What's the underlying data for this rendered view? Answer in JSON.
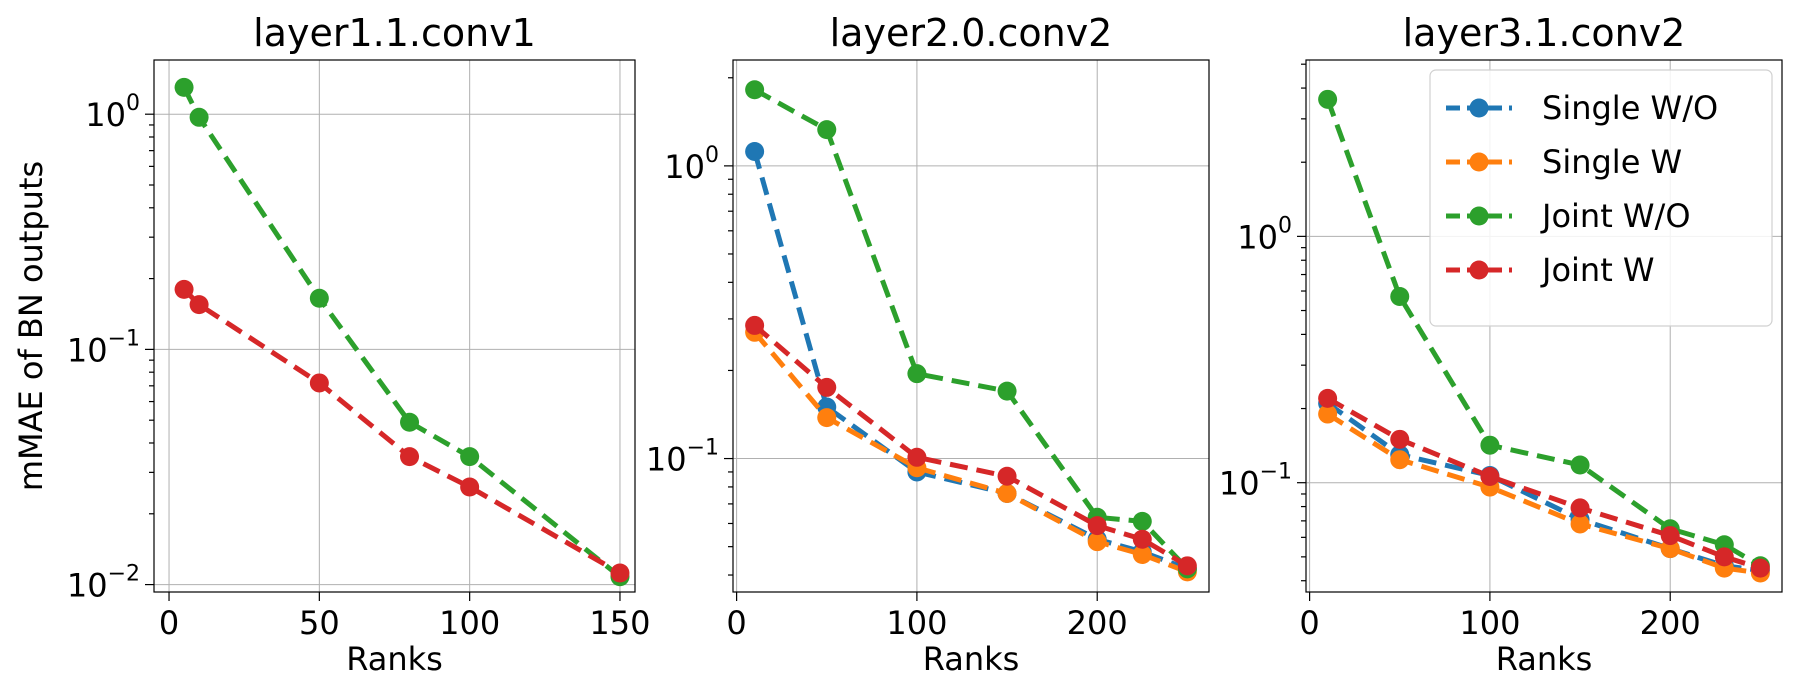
{
  "chart_data": [
    {
      "type": "line",
      "title": "layer1.1.conv1",
      "xlabel": "Ranks",
      "ylabel": "mMAE of BN outputs",
      "yscale": "log",
      "xlim": [
        -5,
        155
      ],
      "ylim": [
        0.0093,
        1.7
      ],
      "xticks": [
        0,
        50,
        100,
        150
      ],
      "yticks": [
        {
          "v": 1,
          "exp": "0"
        },
        {
          "v": 0.1,
          "exp": "−1"
        },
        {
          "v": 0.01,
          "exp": "−2"
        }
      ],
      "grid": true,
      "series": [
        {
          "name": "Single W/O",
          "color": "#1f77b4",
          "x": [],
          "y": []
        },
        {
          "name": "Single W",
          "color": "#ff7f0e",
          "x": [],
          "y": []
        },
        {
          "name": "Joint W/O",
          "color": "#2ca02c",
          "x": [
            5,
            10,
            50,
            80,
            100,
            150
          ],
          "y": [
            1.3,
            0.97,
            0.165,
            0.049,
            0.035,
            0.0108
          ]
        },
        {
          "name": "Joint W",
          "color": "#d62728",
          "x": [
            5,
            10,
            50,
            80,
            100,
            150
          ],
          "y": [
            0.18,
            0.155,
            0.072,
            0.035,
            0.026,
            0.0112
          ]
        }
      ]
    },
    {
      "type": "line",
      "title": "layer2.0.conv2",
      "xlabel": "Ranks",
      "ylabel": "",
      "yscale": "log",
      "xlim": [
        -2,
        262
      ],
      "ylim": [
        0.035,
        2.3
      ],
      "xticks": [
        0,
        100,
        200
      ],
      "yticks": [
        {
          "v": 1,
          "exp": "0"
        },
        {
          "v": 0.1,
          "exp": "−1"
        }
      ],
      "grid": true,
      "series": [
        {
          "name": "Single W/O",
          "color": "#1f77b4",
          "x": [
            10,
            50,
            100,
            150,
            200,
            225,
            250
          ],
          "y": [
            1.12,
            0.15,
            0.09,
            0.076,
            0.053,
            0.048,
            0.042
          ]
        },
        {
          "name": "Single W",
          "color": "#ff7f0e",
          "x": [
            10,
            50,
            100,
            150,
            200,
            225,
            250
          ],
          "y": [
            0.27,
            0.138,
            0.093,
            0.076,
            0.052,
            0.047,
            0.041
          ]
        },
        {
          "name": "Joint W/O",
          "color": "#2ca02c",
          "x": [
            10,
            50,
            100,
            150,
            200,
            225,
            250
          ],
          "y": [
            1.82,
            1.33,
            0.195,
            0.17,
            0.063,
            0.061,
            0.042
          ]
        },
        {
          "name": "Joint W",
          "color": "#d62728",
          "x": [
            10,
            50,
            100,
            150,
            200,
            225,
            250
          ],
          "y": [
            0.285,
            0.175,
            0.101,
            0.087,
            0.059,
            0.053,
            0.043
          ]
        }
      ]
    },
    {
      "type": "line",
      "title": "layer3.1.conv2",
      "xlabel": "Ranks",
      "ylabel": "",
      "yscale": "log",
      "xlim": [
        -2,
        262
      ],
      "ylim": [
        0.036,
        5.2
      ],
      "xticks": [
        0,
        100,
        200
      ],
      "yticks": [
        {
          "v": 1,
          "exp": "0"
        },
        {
          "v": 0.1,
          "exp": "−1"
        }
      ],
      "grid": true,
      "legend": "top-right",
      "series": [
        {
          "name": "Single W/O",
          "color": "#1f77b4",
          "x": [
            10,
            50,
            100,
            150,
            200,
            230,
            250
          ],
          "y": [
            0.21,
            0.13,
            0.107,
            0.071,
            0.054,
            0.046,
            0.044
          ]
        },
        {
          "name": "Single W",
          "color": "#ff7f0e",
          "x": [
            10,
            50,
            100,
            150,
            200,
            230,
            250
          ],
          "y": [
            0.19,
            0.124,
            0.096,
            0.068,
            0.054,
            0.045,
            0.043
          ]
        },
        {
          "name": "Joint W/O",
          "color": "#2ca02c",
          "x": [
            10,
            50,
            100,
            150,
            200,
            230,
            250
          ],
          "y": [
            3.6,
            0.57,
            0.142,
            0.118,
            0.065,
            0.056,
            0.046
          ]
        },
        {
          "name": "Joint W",
          "color": "#d62728",
          "x": [
            10,
            50,
            100,
            150,
            200,
            230,
            250
          ],
          "y": [
            0.22,
            0.15,
            0.106,
            0.079,
            0.061,
            0.05,
            0.045
          ]
        }
      ]
    }
  ]
}
